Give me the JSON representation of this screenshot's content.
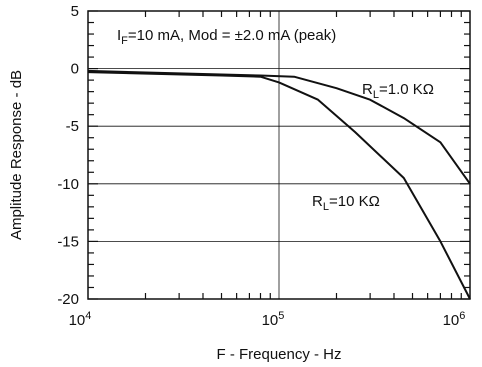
{
  "chart_data": {
    "type": "line",
    "title": "",
    "xlabel": "F - Frequency - Hz",
    "ylabel": "Amplitude Response - dB",
    "x_scale": "log",
    "xlim": [
      10000,
      1000000
    ],
    "ylim": [
      -20,
      5
    ],
    "grid": true,
    "x_ticks": [
      {
        "value": 10000,
        "base": "10",
        "exp": "4"
      },
      {
        "value": 100000,
        "base": "10",
        "exp": "5"
      },
      {
        "value": 1000000,
        "base": "10",
        "exp": "6"
      }
    ],
    "y_ticks": [
      {
        "value": 5,
        "label": "5"
      },
      {
        "value": 0,
        "label": "0"
      },
      {
        "value": -5,
        "label": "-5"
      },
      {
        "value": -10,
        "label": "-10"
      },
      {
        "value": -15,
        "label": "-15"
      },
      {
        "value": -20,
        "label": "-20"
      }
    ],
    "annotation": {
      "pre": "I",
      "sub": "F",
      "post": "=10 mA, Mod = ±2.0 mA (peak)"
    },
    "series": [
      {
        "label_pre": "R",
        "label_sub": "L",
        "label_post": "=1.0 KΩ",
        "x": [
          10000,
          80000,
          120000,
          200000,
          300000,
          450000,
          700000,
          1000000
        ],
        "y": [
          -0.2,
          -0.6,
          -0.7,
          -1.7,
          -2.7,
          -4.3,
          -6.4,
          -10.0
        ]
      },
      {
        "label_pre": "R",
        "label_sub": "L",
        "label_post": "=10 KΩ",
        "x": [
          10000,
          50000,
          80000,
          100000,
          160000,
          250000,
          450000,
          700000,
          1000000
        ],
        "y": [
          -0.3,
          -0.6,
          -0.7,
          -1.2,
          -2.7,
          -5.5,
          -9.5,
          -15.0,
          -20.0
        ]
      }
    ]
  }
}
